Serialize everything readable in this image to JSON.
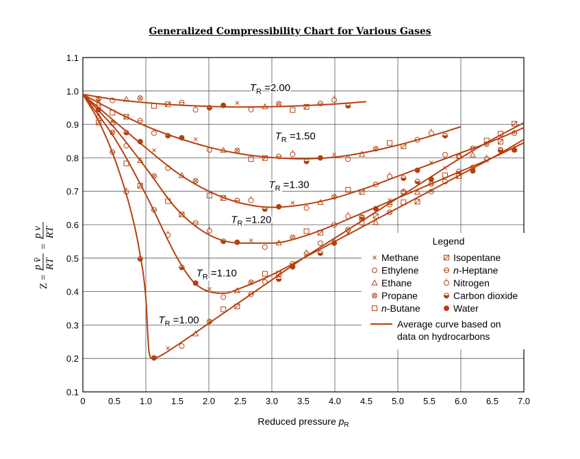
{
  "chart_data": {
    "type": "line",
    "title": "Generalized Compressibility Chart for Various Gases",
    "xlabel": "Reduced pressure p_R",
    "xlabel_main": "Reduced pressure ",
    "xlabel_symbol": "p",
    "xlabel_sub": "R",
    "ylabel": "Z = pv̄/RT = pv/RT",
    "xlim": [
      0,
      7.0
    ],
    "ylim": [
      0.1,
      1.1
    ],
    "grid": true,
    "xticks": [
      "0",
      "0.5",
      "1.0",
      "1.5",
      "2.0",
      "2.5",
      "3.0",
      "3.5",
      "4.0",
      "4.5",
      "5.0",
      "5.5",
      "6.0",
      "6.5",
      "7.0"
    ],
    "yticks": [
      "0.1",
      "0.2",
      "0.3",
      "0.4",
      "0.5",
      "0.6",
      "0.7",
      "0.8",
      "0.9",
      "1.0",
      "1.1"
    ],
    "legend": {
      "title": "Legend",
      "placement": "right",
      "entries": [
        {
          "marker": "x-mark",
          "label": "Methane"
        },
        {
          "marker": "open-circle",
          "label": "Ethylene"
        },
        {
          "marker": "triangle",
          "label": "Ethane"
        },
        {
          "marker": "circle-cross",
          "label": "Propane"
        },
        {
          "marker": "square",
          "label": "n-Butane"
        },
        {
          "marker": "square-slash",
          "label": "Isopentane"
        },
        {
          "marker": "circle-dash",
          "label": "n-Heptane"
        },
        {
          "marker": "circle-tick",
          "label": "Nitrogen"
        },
        {
          "marker": "half-circle",
          "label": "Carbon dioxide"
        },
        {
          "marker": "filled-circle",
          "label": "Water"
        }
      ],
      "curve_label_1": "Average curve based on",
      "curve_label_2": "data on hydrocarbons"
    },
    "series": [
      {
        "name": "T_R = 2.00",
        "label": "2.00",
        "x": [
          0,
          0.5,
          1.0,
          1.5,
          2.0,
          2.5,
          3.0,
          3.5,
          4.0,
          4.5
        ],
        "y": [
          0.99,
          0.975,
          0.965,
          0.958,
          0.954,
          0.952,
          0.953,
          0.956,
          0.961,
          0.968
        ]
      },
      {
        "name": "T_R = 1.50",
        "label": "1.50",
        "x": [
          0,
          0.5,
          1.0,
          1.5,
          2.0,
          2.5,
          3.0,
          3.5,
          4.0,
          4.5,
          5.0,
          5.5,
          6.0
        ],
        "y": [
          0.99,
          0.94,
          0.895,
          0.86,
          0.832,
          0.812,
          0.801,
          0.797,
          0.802,
          0.817,
          0.838,
          0.864,
          0.893
        ]
      },
      {
        "name": "T_R = 1.30",
        "label": "1.30",
        "x": [
          0,
          0.5,
          1.0,
          1.5,
          2.0,
          2.5,
          3.0,
          3.5,
          4.0,
          4.5,
          5.0,
          5.5,
          6.0,
          6.5,
          7.0
        ],
        "y": [
          0.99,
          0.91,
          0.83,
          0.755,
          0.7,
          0.665,
          0.652,
          0.66,
          0.68,
          0.71,
          0.745,
          0.78,
          0.815,
          0.85,
          0.89
        ]
      },
      {
        "name": "T_R = 1.20",
        "label": "1.20",
        "x": [
          0,
          0.5,
          1.0,
          1.5,
          2.0,
          2.5,
          3.0,
          3.5,
          4.0,
          4.5,
          5.0,
          5.5,
          6.0,
          6.5,
          7.0
        ],
        "y": [
          0.99,
          0.89,
          0.77,
          0.645,
          0.57,
          0.545,
          0.545,
          0.565,
          0.6,
          0.64,
          0.68,
          0.72,
          0.76,
          0.8,
          0.845
        ]
      },
      {
        "name": "T_R = 1.10",
        "label": "1.10",
        "x": [
          0,
          0.5,
          1.0,
          1.5,
          1.75,
          2.0,
          2.25,
          2.5,
          3.0,
          3.5,
          4.0,
          4.5,
          5.0,
          5.5,
          6.0,
          6.5,
          7.0
        ],
        "y": [
          0.99,
          0.86,
          0.69,
          0.5,
          0.43,
          0.4,
          0.395,
          0.41,
          0.45,
          0.5,
          0.55,
          0.6,
          0.65,
          0.7,
          0.75,
          0.8,
          0.855
        ]
      },
      {
        "name": "T_R = 1.00",
        "label": "1.00",
        "x": [
          0,
          0.25,
          0.5,
          0.75,
          0.9,
          1.0,
          1.05,
          1.1,
          1.2,
          1.5,
          2.0,
          2.5,
          3.0,
          3.5,
          4.0,
          4.5,
          5.0,
          5.5,
          6.0,
          6.5,
          7.0
        ],
        "y": [
          0.99,
          0.91,
          0.8,
          0.65,
          0.52,
          0.38,
          0.22,
          0.2,
          0.205,
          0.24,
          0.305,
          0.37,
          0.435,
          0.5,
          0.56,
          0.62,
          0.68,
          0.74,
          0.8,
          0.855,
          0.905
        ]
      }
    ]
  }
}
